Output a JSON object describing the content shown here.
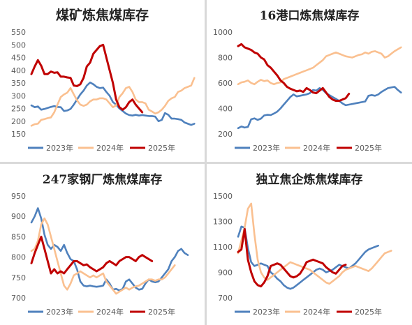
{
  "chart_data": [
    {
      "type": "line",
      "title": "煤矿炼焦煤库存",
      "ylim": [
        150,
        550
      ],
      "yticks": [
        150,
        200,
        250,
        300,
        350,
        400,
        450,
        500,
        550
      ],
      "x_max": 52,
      "legend_position": "bottom",
      "series": [
        {
          "name": "2023年",
          "color": "#4f81bd",
          "values": [
            262,
            255,
            258,
            245,
            248,
            252,
            256,
            259,
            256,
            255,
            240,
            242,
            248,
            265,
            285,
            305,
            320,
            340,
            352,
            345,
            335,
            330,
            332,
            315,
            300,
            275,
            265,
            250,
            240,
            230,
            224,
            222,
            225,
            222,
            224,
            222,
            220,
            220,
            218,
            200,
            205,
            232,
            225,
            210,
            210,
            208,
            205,
            195,
            190,
            185,
            190
          ]
        },
        {
          "name": "2024年",
          "color": "#fac090",
          "values": [
            182,
            188,
            190,
            205,
            208,
            212,
            215,
            235,
            265,
            295,
            305,
            312,
            330,
            305,
            282,
            265,
            260,
            265,
            278,
            285,
            285,
            290,
            290,
            285,
            270,
            255,
            262,
            295,
            310,
            330,
            335,
            315,
            285,
            275,
            275,
            270,
            245,
            238,
            230,
            235,
            245,
            260,
            280,
            290,
            295,
            315,
            320,
            330,
            335,
            340,
            370
          ]
        },
        {
          "name": "2025年",
          "color": "#c00000",
          "values": [
            385,
            415,
            440,
            418,
            385,
            385,
            395,
            390,
            392,
            375,
            375,
            372,
            370,
            340,
            338,
            345,
            370,
            415,
            430,
            465,
            480,
            495,
            500,
            450,
            400,
            350,
            285,
            255,
            245,
            255,
            275,
            285,
            265,
            250,
            235
          ]
        }
      ]
    },
    {
      "type": "line",
      "title": "16港口炼焦煤库存",
      "ylim": [
        200,
        1000
      ],
      "yticks": [
        200,
        400,
        600,
        800,
        1000
      ],
      "x_max": 52,
      "legend_position": "bottom",
      "series": [
        {
          "name": "2023年",
          "color": "#4f81bd",
          "values": [
            245,
            258,
            250,
            255,
            315,
            322,
            310,
            320,
            345,
            350,
            348,
            360,
            375,
            400,
            430,
            460,
            490,
            510,
            495,
            500,
            505,
            510,
            520,
            545,
            540,
            560,
            545,
            520,
            505,
            490,
            475,
            460,
            440,
            425,
            430,
            435,
            440,
            445,
            450,
            455,
            500,
            505,
            500,
            510,
            530,
            545,
            560,
            565,
            570,
            545,
            525
          ]
        },
        {
          "name": "2024年",
          "color": "#fac090",
          "values": [
            590,
            605,
            610,
            620,
            600,
            590,
            610,
            625,
            615,
            620,
            600,
            590,
            600,
            605,
            630,
            640,
            650,
            660,
            670,
            680,
            690,
            700,
            710,
            720,
            740,
            760,
            780,
            810,
            820,
            830,
            840,
            830,
            820,
            810,
            805,
            800,
            810,
            820,
            825,
            840,
            830,
            845,
            850,
            840,
            830,
            800,
            810,
            830,
            850,
            865,
            880
          ]
        },
        {
          "name": "2025年",
          "color": "#c00000",
          "values": [
            890,
            905,
            880,
            870,
            860,
            840,
            830,
            800,
            785,
            740,
            720,
            690,
            660,
            620,
            600,
            570,
            555,
            545,
            535,
            540,
            530,
            560,
            545,
            525,
            520,
            540,
            560,
            525,
            490,
            470,
            460,
            460,
            470,
            480,
            515
          ]
        }
      ]
    },
    {
      "type": "line",
      "title": "247家钢厂炼焦煤库存",
      "ylim": [
        700,
        950
      ],
      "yticks": [
        700,
        750,
        800,
        850,
        900,
        950
      ],
      "x_max": 52,
      "legend_position": "bottom",
      "series": [
        {
          "name": "2023年",
          "color": "#4f81bd",
          "values": [
            885,
            900,
            920,
            895,
            855,
            830,
            820,
            830,
            825,
            815,
            830,
            810,
            795,
            790,
            770,
            740,
            730,
            728,
            730,
            728,
            727,
            728,
            730,
            745,
            735,
            720,
            722,
            718,
            722,
            740,
            745,
            735,
            725,
            720,
            722,
            735,
            745,
            740,
            738,
            740,
            750,
            760,
            770,
            790,
            800,
            815,
            820,
            810,
            805
          ]
        },
        {
          "name": "2024年",
          "color": "#fac090",
          "values": [
            815,
            820,
            840,
            880,
            895,
            880,
            850,
            820,
            790,
            760,
            730,
            720,
            735,
            755,
            760,
            765,
            760,
            755,
            750,
            755,
            750,
            755,
            760,
            740,
            730,
            720,
            710,
            715,
            720,
            725,
            720,
            725,
            728,
            730,
            735,
            740,
            745,
            745,
            742,
            745,
            745,
            750,
            760,
            770,
            780
          ]
        },
        {
          "name": "2025年",
          "color": "#c00000",
          "values": [
            785,
            810,
            830,
            850,
            820,
            790,
            760,
            770,
            760,
            765,
            760,
            770,
            780,
            790,
            790,
            785,
            780,
            782,
            775,
            770,
            765,
            770,
            775,
            785,
            790,
            785,
            780,
            790,
            795,
            800,
            800,
            795,
            790,
            800,
            805,
            800,
            795,
            790
          ]
        }
      ]
    },
    {
      "type": "line",
      "title": "独立焦企炼焦煤库存",
      "ylim": [
        700,
        1500
      ],
      "yticks": [
        700,
        900,
        1100,
        1300,
        1500
      ],
      "x_max": 52,
      "legend_position": "bottom",
      "series": [
        {
          "name": "2023年",
          "color": "#4f81bd",
          "values": [
            1180,
            1260,
            1250,
            1090,
            980,
            950,
            960,
            970,
            960,
            950,
            900,
            880,
            850,
            830,
            800,
            780,
            770,
            780,
            800,
            820,
            840,
            860,
            880,
            900,
            920,
            930,
            920,
            900,
            910,
            920,
            940,
            960,
            950,
            940,
            930,
            950,
            970,
            1000,
            1030,
            1060,
            1080,
            1090,
            1100,
            1110
          ]
        },
        {
          "name": "2024年",
          "color": "#fac090",
          "values": [
            1050,
            1150,
            1250,
            1400,
            1440,
            1200,
            1000,
            900,
            860,
            840,
            860,
            880,
            900,
            920,
            940,
            960,
            980,
            970,
            960,
            950,
            940,
            930,
            920,
            900,
            880,
            860,
            840,
            820,
            810,
            830,
            850,
            870,
            900,
            920,
            930,
            940,
            950,
            940,
            930,
            920,
            910,
            930,
            960,
            990,
            1020,
            1050,
            1060,
            1070
          ]
        },
        {
          "name": "2025年",
          "color": "#c00000",
          "values": [
            1060,
            1080,
            1240,
            1000,
            900,
            830,
            800,
            790,
            820,
            870,
            950,
            960,
            970,
            960,
            930,
            900,
            870,
            860,
            870,
            890,
            930,
            980,
            990,
            1000,
            990,
            980,
            970,
            940,
            920,
            900,
            890,
            920,
            950,
            960
          ]
        }
      ]
    }
  ]
}
